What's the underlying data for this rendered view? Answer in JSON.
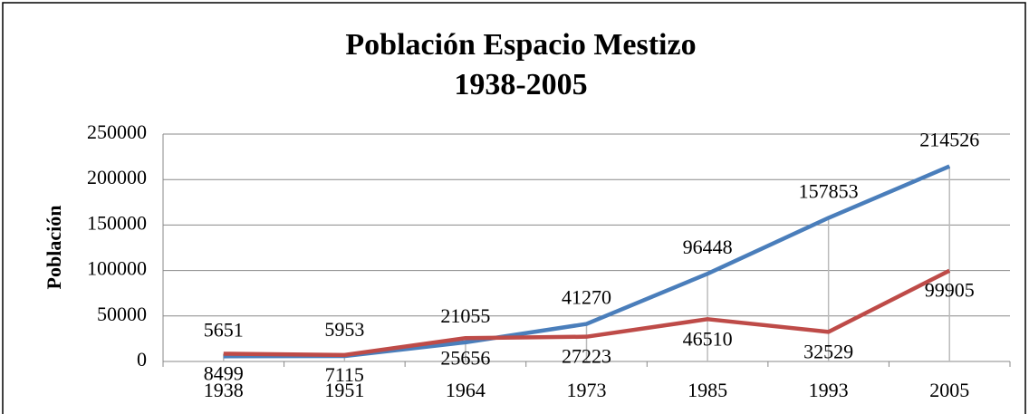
{
  "chart_data": {
    "type": "line",
    "title": [
      "Población Espacio Mestizo",
      "1938-2005"
    ],
    "y_label": "Población",
    "categories": [
      "1938",
      "1951",
      "1964",
      "1973",
      "1985",
      "1993",
      "2005"
    ],
    "series": [
      {
        "color": "#4a7ebb",
        "values": [
          5651,
          5953,
          21055,
          41270,
          96448,
          157853,
          214526
        ]
      },
      {
        "color": "#be4b48",
        "values": [
          8499,
          7115,
          25656,
          27223,
          46510,
          32529,
          99905
        ]
      }
    ],
    "ylim": [
      0,
      250000
    ],
    "yticks": [
      0,
      50000,
      100000,
      150000,
      200000,
      250000
    ],
    "grid": true,
    "xgrid": true
  }
}
